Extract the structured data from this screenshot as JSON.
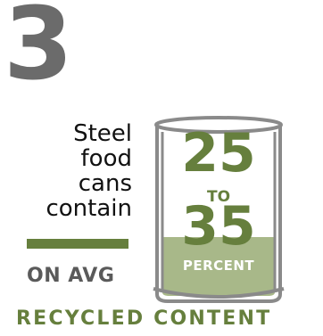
{
  "fact_number": "3",
  "statement_lines": [
    "Steel",
    "food",
    "cans",
    "contain"
  ],
  "qualifier": "ON AVG",
  "range": {
    "low": "25",
    "connector": "TO",
    "high": "35"
  },
  "unit": "PERCENT",
  "caption": "RECYCLED CONTENT",
  "colors": {
    "accent_green": "#667f3d",
    "light_green": "#a8b889",
    "gray": "#6b6b6b"
  }
}
